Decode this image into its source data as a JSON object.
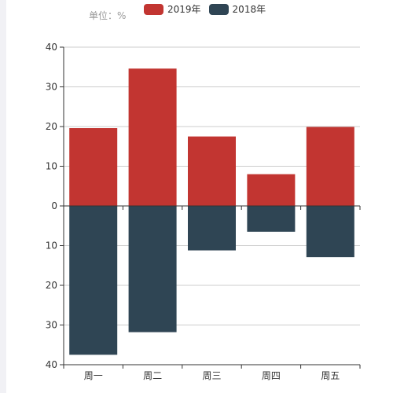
{
  "unit_label": "单位：%",
  "legend": [
    {
      "label": "2019年",
      "color": "#c23531"
    },
    {
      "label": "2018年",
      "color": "#2f4554"
    }
  ],
  "chart_data": {
    "type": "bar",
    "stacked_diverging": true,
    "categories": [
      "周一",
      "周二",
      "周三",
      "周四",
      "周五"
    ],
    "series": [
      {
        "name": "2019年",
        "values": [
          19.6,
          34.6,
          17.5,
          8.0,
          19.9
        ],
        "color": "#c23531",
        "direction": "up"
      },
      {
        "name": "2018年",
        "values": [
          37.5,
          31.8,
          11.2,
          6.5,
          12.9
        ],
        "color": "#2f4554",
        "direction": "down"
      }
    ],
    "yticks_up": [
      "40",
      "30",
      "20",
      "10",
      "0"
    ],
    "yticks_down": [
      "10",
      "20",
      "30",
      "40"
    ],
    "ylim": [
      -40,
      40
    ],
    "grid": true
  }
}
